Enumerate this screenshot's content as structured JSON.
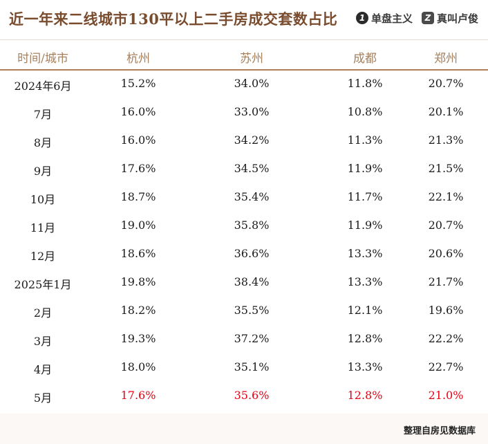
{
  "header": {
    "title": "近一年来二线城市130平以上二手房成交套数占比",
    "brand_primary": "单盘主义",
    "brand_primary_mark": "1",
    "brand_secondary": "真叫卢俊",
    "brand_secondary_mark": "Z"
  },
  "chart_data": {
    "type": "table",
    "title": "近一年来二线城市130平以上二手房成交套数占比",
    "columns": [
      "时间/城市",
      "杭州",
      "苏州",
      "成都",
      "郑州"
    ],
    "rows": [
      {
        "period": "2024年6月",
        "values": [
          "15.2%",
          "34.0%",
          "11.8%",
          "20.7%"
        ]
      },
      {
        "period": "7月",
        "values": [
          "16.0%",
          "33.0%",
          "10.8%",
          "20.1%"
        ]
      },
      {
        "period": "8月",
        "values": [
          "16.0%",
          "34.2%",
          "11.3%",
          "21.3%"
        ]
      },
      {
        "period": "9月",
        "values": [
          "17.6%",
          "34.5%",
          "11.9%",
          "21.5%"
        ]
      },
      {
        "period": "10月",
        "values": [
          "18.7%",
          "35.4%",
          "11.7%",
          "22.1%"
        ]
      },
      {
        "period": "11月",
        "values": [
          "19.0%",
          "35.8%",
          "11.9%",
          "20.7%"
        ]
      },
      {
        "period": "12月",
        "values": [
          "18.6%",
          "36.6%",
          "13.3%",
          "20.6%"
        ]
      },
      {
        "period": "2025年1月",
        "values": [
          "19.8%",
          "38.4%",
          "13.3%",
          "21.7%"
        ]
      },
      {
        "period": "2月",
        "values": [
          "18.2%",
          "35.5%",
          "12.1%",
          "19.6%"
        ]
      },
      {
        "period": "3月",
        "values": [
          "19.3%",
          "37.2%",
          "12.8%",
          "22.2%"
        ]
      },
      {
        "period": "4月",
        "values": [
          "18.0%",
          "35.1%",
          "13.3%",
          "22.7%"
        ]
      },
      {
        "period": "5月",
        "values": [
          "17.6%",
          "35.6%",
          "12.8%",
          "21.0%"
        ]
      }
    ],
    "highlight_row": 11,
    "highlight_color": "#e60012",
    "header_color": "#a5805d",
    "title_color": "#7a4c2e"
  },
  "footer": {
    "source": "整理自房见数据库"
  }
}
